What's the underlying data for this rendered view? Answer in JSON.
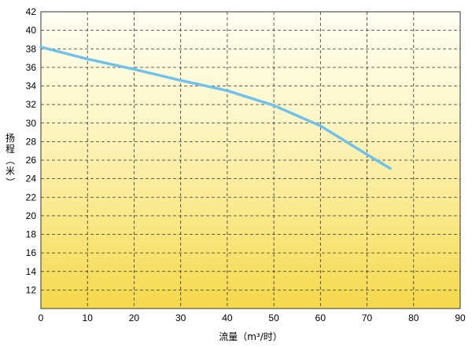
{
  "chart_data": {
    "type": "line",
    "title": "",
    "xlabel": "流量（m³/时）",
    "ylabel": "扬程（米）",
    "xlim": [
      0,
      90
    ],
    "ylim": [
      10,
      42
    ],
    "x_ticks": [
      0,
      10,
      20,
      30,
      40,
      50,
      60,
      70,
      80,
      90
    ],
    "y_ticks": [
      12,
      14,
      16,
      18,
      20,
      22,
      24,
      26,
      28,
      30,
      32,
      34,
      36,
      38,
      40,
      42
    ],
    "grid": true,
    "legend": "none",
    "series": [
      {
        "x": [
          0,
          10,
          20,
          30,
          40,
          50,
          60,
          70,
          75
        ],
        "y": [
          38.2,
          36.9,
          35.8,
          34.6,
          33.5,
          31.9,
          29.7,
          26.6,
          25.1
        ]
      }
    ],
    "colors": {
      "line": "#6ec2ec",
      "background_top": "#fffff2",
      "background_bottom": "#f5d84a",
      "grid": "#333333",
      "border": "#333333"
    }
  }
}
